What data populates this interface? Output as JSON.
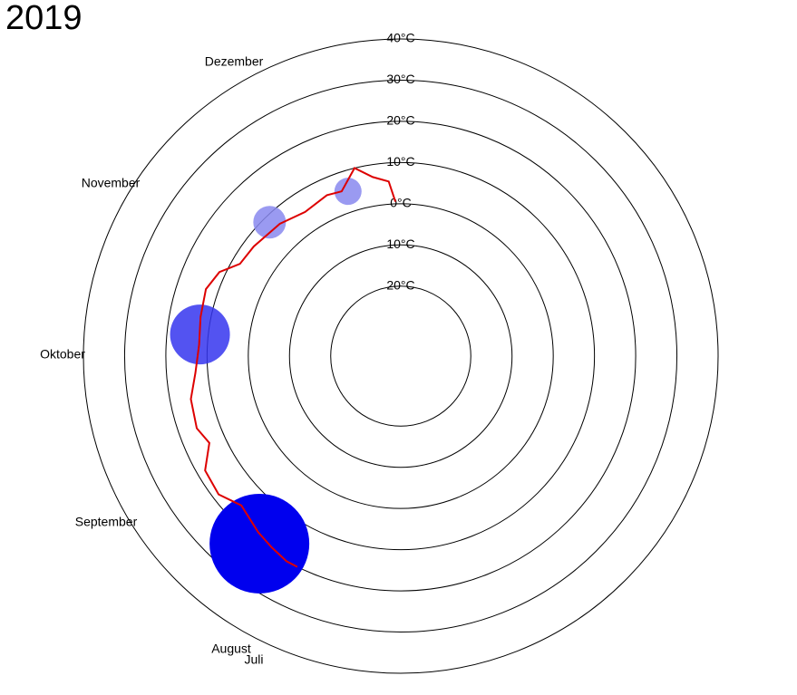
{
  "chart_data": {
    "type": "polar-line",
    "title": "2019",
    "categories": [
      "Juli",
      "August",
      "September",
      "Oktober",
      "November",
      "Dezember"
    ],
    "x": [
      209,
      212,
      217,
      222,
      230,
      236,
      243,
      249,
      254,
      262,
      269,
      277,
      285,
      293,
      299,
      304,
      311,
      322,
      331,
      340,
      345,
      351,
      356,
      361,
      363
    ],
    "series": [
      {
        "color": "#dd0000",
        "values": [
          20,
          20,
          19,
          18,
          16,
          18.5,
          18,
          14,
          15.5,
          15,
          13,
          12,
          12.5,
          13,
          11.5,
          8,
          7.5,
          6.5,
          5,
          6,
          5.5,
          10,
          7,
          5.5,
          0.5
        ]
      }
    ],
    "bubbles": {
      "x": [
        220,
        280,
        320,
        347
      ],
      "values": [
        20,
        12,
        8.5,
        5
      ],
      "sizes": [
        55,
        33,
        18,
        15
      ],
      "colors": [
        "#0000ee",
        "#3535ee",
        "#8888ee",
        "#8888ee"
      ]
    },
    "xlim": [
      0,
      365
    ],
    "ylim": [
      -37,
      40
    ],
    "yticks": [
      {
        "value": -20,
        "label": "20°C"
      },
      {
        "value": -10,
        "label": "10°C"
      },
      {
        "value": 0,
        "label": "0°C"
      },
      {
        "value": 10,
        "label": "10°C"
      },
      {
        "value": 20,
        "label": "20°C"
      },
      {
        "value": 30,
        "label": "30°C"
      },
      {
        "value": 40,
        "label": "40°C"
      }
    ]
  }
}
